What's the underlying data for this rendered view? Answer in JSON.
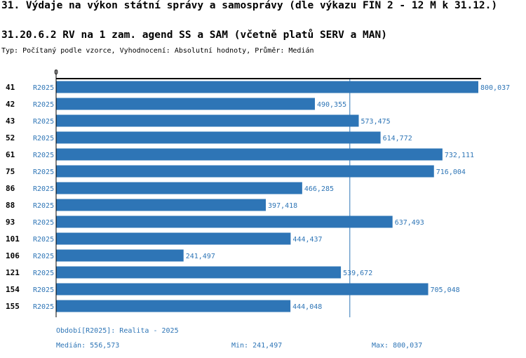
{
  "header": {
    "title": "31. Výdaje na výkon státní správy a samosprávy (dle výkazu FIN 2 - 12 M k 31.12.)",
    "subtitle": "31.20.6.2 RV na 1 zam. agend SS a SAM (včetně platů SERV a MAN)",
    "type_line": "Typ: Počítaný podle vzorce, Vyhodnocení: Absolutní hodnoty, Průměr: Medián"
  },
  "chart_data": {
    "type": "bar",
    "orientation": "horizontal",
    "x_axis_label": "0",
    "xlim": [
      0,
      800037
    ],
    "categories": [
      "41",
      "42",
      "43",
      "52",
      "61",
      "75",
      "86",
      "88",
      "93",
      "101",
      "106",
      "121",
      "154",
      "155"
    ],
    "series": [
      {
        "name": "R2025",
        "values": [
          800037,
          490355,
          573475,
          614772,
          732111,
          716004,
          466285,
          397418,
          637493,
          444437,
          241497,
          539672,
          705048,
          444048
        ],
        "value_labels": [
          "800,037",
          "490,355",
          "573,475",
          "614,772",
          "732,111",
          "716,004",
          "466,285",
          "397,418",
          "637,493",
          "444,437",
          "241,497",
          "539,672",
          "705,048",
          "444,048"
        ]
      }
    ],
    "median": 556573,
    "colors": {
      "bar": "#2e75b6",
      "label": "#2e75b6",
      "median_line": "#2e75b6",
      "axis": "#000000"
    }
  },
  "footer": {
    "period": "Období[R2025]: Realita - 2025",
    "median": "Medián: 556,573",
    "min": "Min: 241,497",
    "max": "Max: 800,037"
  }
}
